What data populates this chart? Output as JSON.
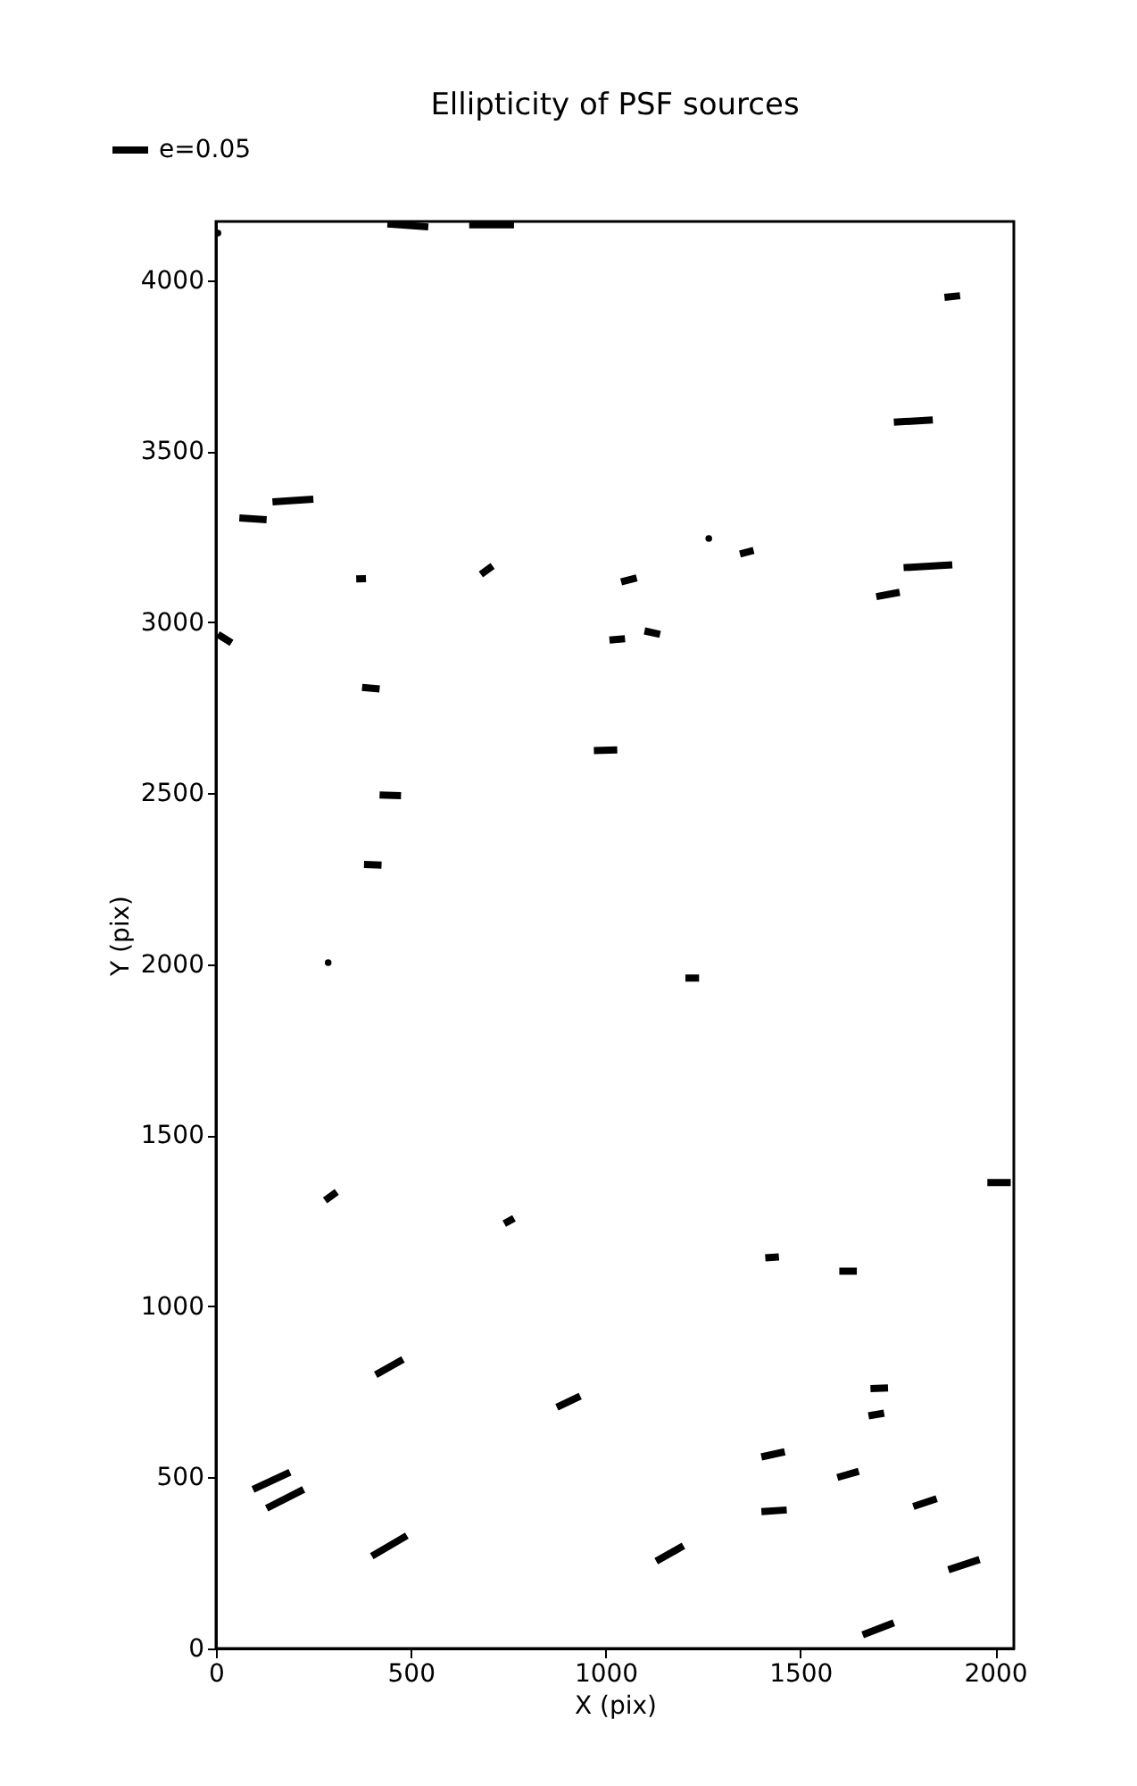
{
  "chart_data": {
    "type": "line",
    "title": "Ellipticity of PSF sources",
    "xlabel": "X (pix)",
    "ylabel": "Y (pix)",
    "xlim": [
      0,
      2048
    ],
    "ylim": [
      0,
      4172
    ],
    "xticks": [
      0,
      500,
      1000,
      1500,
      2000
    ],
    "yticks": [
      0,
      500,
      1000,
      1500,
      2000,
      2500,
      3000,
      3500,
      4000
    ],
    "grid": false,
    "legend": "top left",
    "marker": "none",
    "line_style": "solid",
    "series": [
      {
        "name": "e=0.05",
        "color": "#000000",
        "x": [
          440,
          545,
          null,
          650,
          765,
          null,
          1870,
          1910,
          null,
          1740,
          1840,
          null,
          60,
          130,
          null,
          145,
          250,
          null,
          360,
          385,
          null,
          680,
          710,
          null,
          1040,
          1080,
          null,
          1345,
          1380,
          null,
          1765,
          1890,
          null,
          1695,
          1755,
          null,
          5,
          40,
          null,
          1010,
          1050,
          null,
          1100,
          1140,
          null,
          375,
          420,
          null,
          970,
          1030,
          null,
          420,
          475,
          null,
          380,
          425,
          null,
          1205,
          1240,
          null,
          280,
          310,
          null,
          740,
          765,
          null,
          1410,
          1445,
          null,
          1600,
          1645,
          null,
          1980,
          2040,
          null,
          410,
          480,
          null,
          875,
          935,
          null,
          1680,
          1725,
          null,
          1675,
          1715,
          null,
          1400,
          1460,
          null,
          1595,
          1650,
          null,
          95,
          190,
          null,
          130,
          225,
          null,
          1400,
          1465,
          null,
          1790,
          1850,
          null,
          400,
          490,
          null,
          1130,
          1200,
          null,
          1880,
          1960,
          null,
          1660,
          1740
        ],
        "values": [
          4165,
          4156,
          null,
          4162,
          4162,
          null,
          3950,
          3955,
          null,
          3585,
          3592,
          null,
          3305,
          3300,
          null,
          3352,
          3360,
          null,
          3127,
          3128,
          null,
          3140,
          3165,
          null,
          3118,
          3130,
          null,
          3200,
          3210,
          null,
          3160,
          3168,
          null,
          3075,
          3088,
          null,
          2965,
          2940,
          null,
          2948,
          2952,
          null,
          2975,
          2965,
          null,
          2810,
          2805,
          null,
          2625,
          2627,
          null,
          2495,
          2493,
          null,
          2292,
          2290,
          null,
          1960,
          1960,
          null,
          1310,
          1335,
          null,
          1242,
          1258,
          null,
          1142,
          1145,
          null,
          1103,
          1103,
          null,
          1362,
          1362,
          null,
          800,
          845,
          null,
          705,
          738,
          null,
          760,
          762,
          null,
          680,
          688,
          null,
          560,
          575,
          null,
          500,
          518,
          null,
          465,
          515,
          null,
          410,
          465,
          null,
          400,
          405,
          null,
          415,
          438,
          null,
          270,
          330,
          null,
          255,
          300,
          null,
          230,
          260,
          null,
          40,
          75
        ]
      },
      {
        "type": "scatter",
        "color": "#000000",
        "marker": "circle",
        "x": [
          5,
          1265,
          288
        ],
        "values": [
          4138,
          3245,
          2005
        ]
      }
    ]
  }
}
